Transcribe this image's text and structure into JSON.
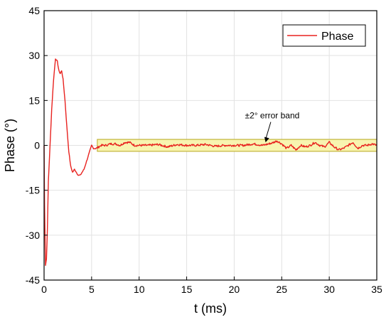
{
  "chart_data": {
    "type": "line",
    "title": "",
    "xlabel": "t (ms)",
    "ylabel": "Phase (°)",
    "xlim": [
      0,
      35
    ],
    "ylim": [
      -45,
      45
    ],
    "x_ticks": [
      0,
      5,
      10,
      15,
      20,
      25,
      30,
      35
    ],
    "y_ticks": [
      -45,
      -30,
      -15,
      0,
      15,
      30,
      45
    ],
    "grid": true,
    "legend_position": "top-right",
    "series": [
      {
        "name": "Phase",
        "color": "#e8221f",
        "x": [
          0,
          0.05,
          0.15,
          0.25,
          0.35,
          0.45,
          0.6,
          0.8,
          1.0,
          1.2,
          1.4,
          1.55,
          1.7,
          1.85,
          2.0,
          2.2,
          2.4,
          2.6,
          2.8,
          3.0,
          3.2,
          3.4,
          3.6,
          3.8,
          4.0,
          4.2,
          4.4,
          4.6,
          4.8,
          5.0,
          5.2,
          5.5,
          6.0,
          6.5,
          7.0,
          7.5,
          8.0,
          8.5,
          9.0,
          9.5,
          10.0,
          11.0,
          12.0,
          13.0,
          14.0,
          15.0,
          16.0,
          17.0,
          18.0,
          19.0,
          20.0,
          21.0,
          22.0,
          23.0,
          24.0,
          24.5,
          25.0,
          25.5,
          26.0,
          26.5,
          27.0,
          27.5,
          28.0,
          28.5,
          29.0,
          29.5,
          30.0,
          30.5,
          31.0,
          31.5,
          32.0,
          32.5,
          33.0,
          33.5,
          34.0,
          34.5,
          35.0
        ],
        "values": [
          0,
          -20,
          -40,
          -38,
          -28,
          -12,
          -2,
          12,
          22,
          29,
          28,
          25,
          24,
          25,
          22,
          15,
          6,
          -2,
          -7,
          -9,
          -8,
          -9,
          -10,
          -10,
          -9,
          -8,
          -6,
          -4,
          -2,
          0,
          -1,
          -1,
          0,
          0,
          0.5,
          0.5,
          0,
          1,
          1,
          0,
          0,
          0,
          0.3,
          -0.5,
          0.3,
          0,
          0,
          0.3,
          -0.3,
          0,
          0,
          0,
          0.5,
          0,
          0.8,
          1.5,
          0.5,
          -1,
          0,
          -1.5,
          0,
          -0.5,
          0,
          1,
          0,
          -0.5,
          1,
          -0.5,
          -1.5,
          -1,
          0,
          1,
          -1,
          0,
          0,
          0.5,
          0
        ]
      }
    ],
    "error_band": {
      "label": "±2° error band",
      "x_start": 5.6,
      "x_end": 35,
      "y_min": -2,
      "y_max": 2,
      "fill": "#f8f4b0",
      "stroke": "#b8a820"
    },
    "annotation": {
      "text": "±2° error band",
      "text_x": 24,
      "text_y": 9,
      "arrow_to_x": 23.3,
      "arrow_to_y": 1
    }
  }
}
